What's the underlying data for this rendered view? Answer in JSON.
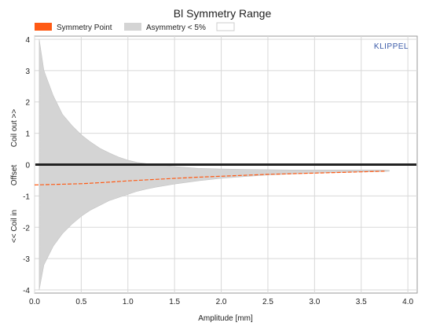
{
  "chart_data": {
    "type": "area",
    "title": "Bl Symmetry Range",
    "xlabel": "Amplitude [mm]",
    "ylabel_parts": [
      "<< Coil in",
      "Offset",
      "Coil out >>"
    ],
    "watermark": "KLIPPEL",
    "xlim": [
      0,
      4.1
    ],
    "ylim": [
      -4.1,
      4.1
    ],
    "x_ticks": [
      "0.0",
      "0.5",
      "1.0",
      "1.5",
      "2.0",
      "2.5",
      "3.0",
      "3.5",
      "4.0"
    ],
    "x_tick_values": [
      0,
      0.5,
      1.0,
      1.5,
      2.0,
      2.5,
      3.0,
      3.5,
      4.0
    ],
    "y_ticks": [
      "4",
      "3",
      "2",
      "1",
      "0",
      "-1",
      "-2",
      "-3",
      "-4"
    ],
    "y_tick_values": [
      4,
      3,
      2,
      1,
      0,
      -1,
      -2,
      -3,
      -4
    ],
    "grid": true,
    "legend": {
      "placement": "top",
      "items": [
        {
          "label": "Symmetry Point",
          "color": "#ff5a14"
        },
        {
          "label": "Asymmetry < 5%",
          "color": "#d4d4d4"
        }
      ]
    },
    "series": [
      {
        "name": "Asymmetry < 5%",
        "type": "band",
        "color": "#d4d4d4",
        "x": [
          0.05,
          0.1,
          0.2,
          0.3,
          0.4,
          0.5,
          0.6,
          0.7,
          0.8,
          0.9,
          1.0,
          1.1,
          1.2,
          1.3,
          1.5,
          1.75,
          2.0,
          2.25,
          2.5,
          2.75,
          3.0,
          3.25,
          3.5,
          3.7,
          3.8
        ],
        "upper": [
          4.0,
          3.0,
          2.2,
          1.6,
          1.25,
          0.95,
          0.72,
          0.52,
          0.37,
          0.24,
          0.14,
          0.07,
          0.03,
          0.0,
          -0.06,
          -0.12,
          -0.14,
          -0.15,
          -0.16,
          -0.17,
          -0.17,
          -0.17,
          -0.17,
          -0.17,
          -0.18
        ],
        "lower": [
          -4.0,
          -3.2,
          -2.6,
          -2.2,
          -1.9,
          -1.65,
          -1.45,
          -1.3,
          -1.15,
          -1.05,
          -0.95,
          -0.85,
          -0.78,
          -0.72,
          -0.62,
          -0.52,
          -0.44,
          -0.38,
          -0.33,
          -0.3,
          -0.27,
          -0.25,
          -0.23,
          -0.22,
          -0.21
        ]
      },
      {
        "name": "Symmetry Point",
        "type": "line",
        "color": "#ff5a14",
        "x": [
          0.0,
          0.25,
          0.5,
          0.75,
          1.0,
          1.25,
          1.5,
          1.75,
          2.0,
          2.25,
          2.5,
          2.75,
          3.0,
          3.25,
          3.5,
          3.75
        ],
        "y": [
          -0.65,
          -0.63,
          -0.61,
          -0.57,
          -0.52,
          -0.48,
          -0.44,
          -0.4,
          -0.37,
          -0.34,
          -0.31,
          -0.29,
          -0.27,
          -0.25,
          -0.23,
          -0.21
        ]
      },
      {
        "type": "reference",
        "color": "#222222",
        "y": 0
      }
    ]
  }
}
